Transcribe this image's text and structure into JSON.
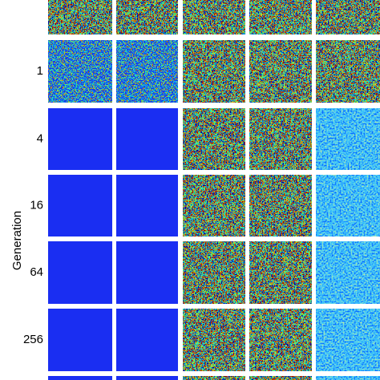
{
  "y_label": "Generation",
  "row_labels": [
    "1",
    "4",
    "16",
    "64",
    "256"
  ]
}
